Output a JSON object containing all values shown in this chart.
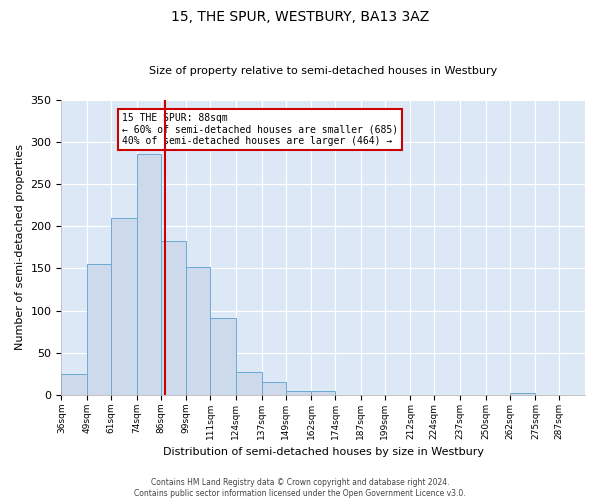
{
  "title": "15, THE SPUR, WESTBURY, BA13 3AZ",
  "subtitle": "Size of property relative to semi-detached houses in Westbury",
  "xlabel": "Distribution of semi-detached houses by size in Westbury",
  "ylabel": "Number of semi-detached properties",
  "bar_color": "#ccdaeb",
  "bar_edge_color": "#6aaad4",
  "bg_color": "#dce8f5",
  "grid_color": "#ffffff",
  "marker_line_color": "#cc0000",
  "annotation_box_color": "#cc0000",
  "bin_edges": [
    36,
    49,
    61,
    74,
    86,
    99,
    111,
    124,
    137,
    149,
    162,
    174,
    187,
    199,
    212,
    224,
    237,
    250,
    262,
    275,
    287,
    300
  ],
  "counts": [
    25,
    155,
    210,
    285,
    183,
    152,
    91,
    28,
    15,
    5,
    5,
    0,
    0,
    0,
    0,
    0,
    0,
    0,
    2,
    0,
    0
  ],
  "marker_value": 88,
  "annotation_title": "15 THE SPUR: 88sqm",
  "annotation_line1": "← 60% of semi-detached houses are smaller (685)",
  "annotation_line2": "40% of semi-detached houses are larger (464) →",
  "ylim": [
    0,
    350
  ],
  "yticks": [
    0,
    50,
    100,
    150,
    200,
    250,
    300,
    350
  ],
  "tick_labels": [
    "36sqm",
    "49sqm",
    "61sqm",
    "74sqm",
    "86sqm",
    "99sqm",
    "111sqm",
    "124sqm",
    "137sqm",
    "149sqm",
    "162sqm",
    "174sqm",
    "187sqm",
    "199sqm",
    "212sqm",
    "224sqm",
    "237sqm",
    "250sqm",
    "262sqm",
    "275sqm",
    "287sqm"
  ],
  "footer_line1": "Contains HM Land Registry data © Crown copyright and database right 2024.",
  "footer_line2": "Contains public sector information licensed under the Open Government Licence v3.0.",
  "fig_facecolor": "#ffffff",
  "title_fontsize": 10,
  "subtitle_fontsize": 8,
  "ylabel_fontsize": 8,
  "xlabel_fontsize": 8,
  "ytick_fontsize": 8,
  "xtick_fontsize": 6.5,
  "footer_fontsize": 5.5,
  "ann_fontsize": 7
}
